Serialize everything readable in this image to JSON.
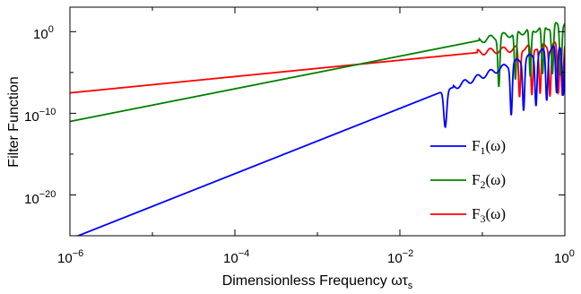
{
  "chart_data": {
    "type": "line",
    "title": "",
    "xlabel": "Dimensionless Frequency ωτ",
    "xlabel_sub": "s",
    "ylabel": "Filter Function",
    "xscale": "log",
    "yscale": "log",
    "xlim_exp": [
      -6,
      0
    ],
    "ylim_exp": [
      -25,
      3
    ],
    "x_ticks": [
      {
        "base": "10",
        "exp": "−6",
        "value_exp": -6
      },
      {
        "base": "10",
        "exp": "−4",
        "value_exp": -4
      },
      {
        "base": "10",
        "exp": "−2",
        "value_exp": -2
      },
      {
        "base": "10",
        "exp": "0",
        "value_exp": 0
      }
    ],
    "y_ticks": [
      {
        "base": "10",
        "exp": "0",
        "value_exp": 0
      },
      {
        "base": "10",
        "exp": "−10",
        "value_exp": -10
      },
      {
        "base": "10",
        "exp": "−20",
        "value_exp": -20
      }
    ],
    "grid": false,
    "legend_position": "bottom-right",
    "series": [
      {
        "key": "F1",
        "label_main": "F",
        "label_sub": "1",
        "label_tail": "(ω)",
        "color": "#0000ff",
        "slope": 4,
        "offset_exp": -1.4,
        "dip_x_exp": -1.45,
        "peak_exp": -1.5,
        "lobe_dips_x_exp": [
          -0.65,
          -0.5,
          -0.35,
          -0.22,
          -0.1,
          -0.02
        ]
      },
      {
        "key": "F2",
        "label_main": "F",
        "label_sub": "2",
        "label_tail": "(ω)",
        "color": "#008000",
        "slope": 2,
        "offset_exp": 1.0,
        "peak_exp": 1.6,
        "lobe_dips_x_exp": [
          -0.8,
          -0.6,
          -0.42,
          -0.27,
          -0.15,
          -0.05
        ]
      },
      {
        "key": "F3",
        "label_main": "F",
        "label_sub": "3",
        "label_tail": "(ω)",
        "color": "#ff0000",
        "slope": 1,
        "offset_exp": -1.5,
        "peak_exp": 1.4,
        "lobe_dips_x_exp": [
          -0.55,
          -0.4,
          -0.3,
          -0.18,
          -0.08,
          -0.03
        ]
      }
    ]
  }
}
